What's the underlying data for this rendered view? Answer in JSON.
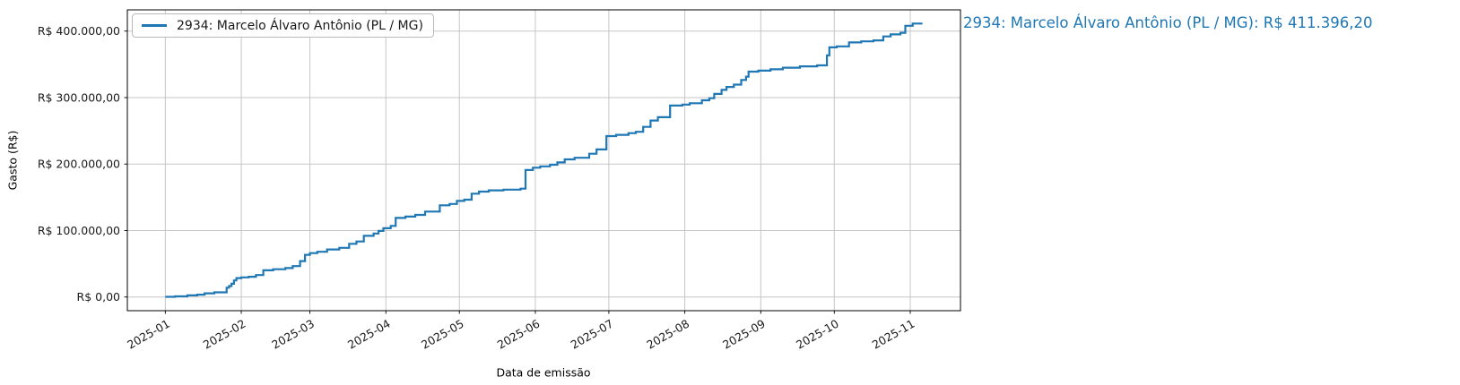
{
  "colors": {
    "line": "#1f77b4",
    "annotation": "#1f77b4",
    "grid": "#c6c6c6",
    "spine": "#000000",
    "tick_text": "#1a1a1a",
    "background": "#ffffff"
  },
  "legend": {
    "label": "2934: Marcelo Álvaro Antônio (PL / MG)"
  },
  "annotation": {
    "text": "2934: Marcelo Álvaro Antônio (PL / MG): R$ 411.396,20"
  },
  "chart_data": {
    "type": "line",
    "style": "step-after-cumulative",
    "title": "",
    "xlabel": "Data de emissão",
    "ylabel": "Gasto (R$)",
    "grid": true,
    "legend_position": "upper-left",
    "xlim_days_from_2025_01_01": [
      -15.5,
      324.5
    ],
    "ylim": [
      -20570,
      431970
    ],
    "x_ticks": [
      {
        "date": "2025-01-01",
        "label": "2025-01"
      },
      {
        "date": "2025-02-01",
        "label": "2025-02"
      },
      {
        "date": "2025-03-01",
        "label": "2025-03"
      },
      {
        "date": "2025-04-01",
        "label": "2025-04"
      },
      {
        "date": "2025-05-01",
        "label": "2025-05"
      },
      {
        "date": "2025-06-01",
        "label": "2025-06"
      },
      {
        "date": "2025-07-01",
        "label": "2025-07"
      },
      {
        "date": "2025-08-01",
        "label": "2025-08"
      },
      {
        "date": "2025-09-01",
        "label": "2025-09"
      },
      {
        "date": "2025-10-01",
        "label": "2025-10"
      },
      {
        "date": "2025-11-01",
        "label": "2025-11"
      }
    ],
    "y_ticks": [
      {
        "value": 0,
        "label": "R$ 0,00"
      },
      {
        "value": 100000,
        "label": "R$ 100.000,00"
      },
      {
        "value": 200000,
        "label": "R$ 200.000,00"
      },
      {
        "value": 300000,
        "label": "R$ 300.000,00"
      },
      {
        "value": 400000,
        "label": "R$ 400.000,00"
      }
    ],
    "series": [
      {
        "name": "2934: Marcelo Álvaro Antônio (PL / MG)",
        "final_value": 411396.2,
        "final_value_label": "R$ 411.396,20",
        "points": [
          [
            "2025-01-01",
            300
          ],
          [
            "2025-01-05",
            1000
          ],
          [
            "2025-01-10",
            2500
          ],
          [
            "2025-01-14",
            3500
          ],
          [
            "2025-01-17",
            5500
          ],
          [
            "2025-01-21",
            7000
          ],
          [
            "2025-01-26",
            14000
          ],
          [
            "2025-01-27",
            16500
          ],
          [
            "2025-01-28",
            20000
          ],
          [
            "2025-01-29",
            25000
          ],
          [
            "2025-01-30",
            28500
          ],
          [
            "2025-02-01",
            29500
          ],
          [
            "2025-02-04",
            30500
          ],
          [
            "2025-02-07",
            33000
          ],
          [
            "2025-02-10",
            40200
          ],
          [
            "2025-02-14",
            41800
          ],
          [
            "2025-02-19",
            43500
          ],
          [
            "2025-02-22",
            46500
          ],
          [
            "2025-02-25",
            54000
          ],
          [
            "2025-02-27",
            63500
          ],
          [
            "2025-03-01",
            66000
          ],
          [
            "2025-03-04",
            68000
          ],
          [
            "2025-03-08",
            71500
          ],
          [
            "2025-03-13",
            74000
          ],
          [
            "2025-03-17",
            80000
          ],
          [
            "2025-03-20",
            83500
          ],
          [
            "2025-03-23",
            92000
          ],
          [
            "2025-03-27",
            95500
          ],
          [
            "2025-03-29",
            99500
          ],
          [
            "2025-03-31",
            103500
          ],
          [
            "2025-04-03",
            107000
          ],
          [
            "2025-04-05",
            119000
          ],
          [
            "2025-04-09",
            121000
          ],
          [
            "2025-04-13",
            123500
          ],
          [
            "2025-04-17",
            128500
          ],
          [
            "2025-04-23",
            138000
          ],
          [
            "2025-04-27",
            140000
          ],
          [
            "2025-04-30",
            144500
          ],
          [
            "2025-05-03",
            146500
          ],
          [
            "2025-05-06",
            155500
          ],
          [
            "2025-05-09",
            158500
          ],
          [
            "2025-05-13",
            160500
          ],
          [
            "2025-05-19",
            161500
          ],
          [
            "2025-05-26",
            163000
          ],
          [
            "2025-05-28",
            191000
          ],
          [
            "2025-05-31",
            194500
          ],
          [
            "2025-06-03",
            196500
          ],
          [
            "2025-06-07",
            199000
          ],
          [
            "2025-06-10",
            202500
          ],
          [
            "2025-06-13",
            207000
          ],
          [
            "2025-06-17",
            209500
          ],
          [
            "2025-06-23",
            215500
          ],
          [
            "2025-06-26",
            222000
          ],
          [
            "2025-06-30",
            242000
          ],
          [
            "2025-07-04",
            244000
          ],
          [
            "2025-07-09",
            246500
          ],
          [
            "2025-07-12",
            248500
          ],
          [
            "2025-07-15",
            256000
          ],
          [
            "2025-07-18",
            265500
          ],
          [
            "2025-07-21",
            270500
          ],
          [
            "2025-07-26",
            288000
          ],
          [
            "2025-07-31",
            289500
          ],
          [
            "2025-08-03",
            291500
          ],
          [
            "2025-08-08",
            296000
          ],
          [
            "2025-08-11",
            299000
          ],
          [
            "2025-08-13",
            305500
          ],
          [
            "2025-08-16",
            311500
          ],
          [
            "2025-08-18",
            316000
          ],
          [
            "2025-08-21",
            319500
          ],
          [
            "2025-08-24",
            326500
          ],
          [
            "2025-08-26",
            331500
          ],
          [
            "2025-08-27",
            339000
          ],
          [
            "2025-08-31",
            340500
          ],
          [
            "2025-09-05",
            342500
          ],
          [
            "2025-09-10",
            345000
          ],
          [
            "2025-09-17",
            347000
          ],
          [
            "2025-09-24",
            348500
          ],
          [
            "2025-09-28",
            363500
          ],
          [
            "2025-09-29",
            375500
          ],
          [
            "2025-10-02",
            377000
          ],
          [
            "2025-10-07",
            383000
          ],
          [
            "2025-10-12",
            384500
          ],
          [
            "2025-10-17",
            386000
          ],
          [
            "2025-10-21",
            392000
          ],
          [
            "2025-10-24",
            395000
          ],
          [
            "2025-10-28",
            397500
          ],
          [
            "2025-10-30",
            408000
          ],
          [
            "2025-11-02",
            411396.2
          ],
          [
            "2025-11-06",
            411396.2
          ]
        ]
      }
    ]
  }
}
